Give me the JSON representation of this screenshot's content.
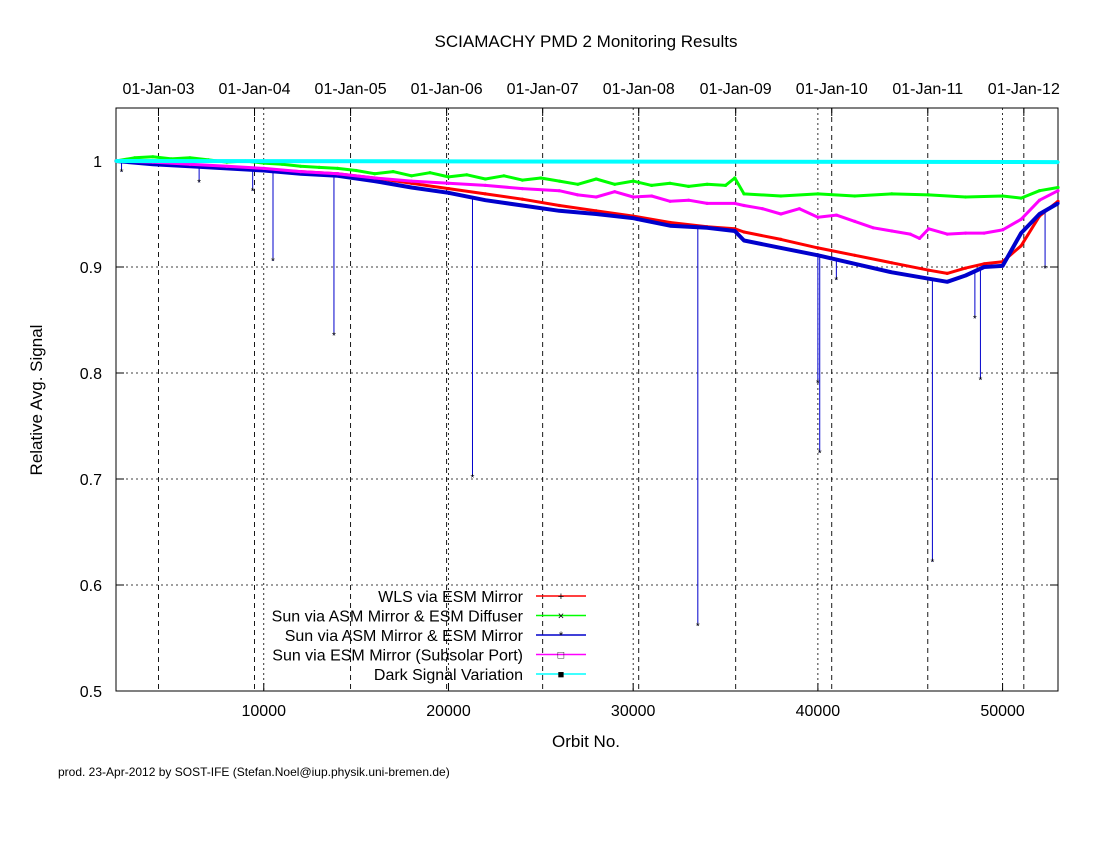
{
  "chart_data": {
    "type": "line",
    "title": "SCIAMACHY PMD 2 Monitoring Results",
    "xlabel": "Orbit No.",
    "ylabel": "Relative Avg. Signal",
    "footer": "prod. 23-Apr-2012 by SOST-IFE (Stefan.Noel@iup.physik.uni-bremen.de)",
    "xlim": [
      2000,
      53000
    ],
    "ylim": [
      0.5,
      1.05
    ],
    "x_ticks": [
      10000,
      20000,
      30000,
      40000,
      50000
    ],
    "x_tick_labels": [
      "10000",
      "20000",
      "30000",
      "40000",
      "50000"
    ],
    "y_ticks": [
      0.5,
      0.6,
      0.7,
      0.8,
      0.9,
      1.0
    ],
    "y_tick_labels": [
      "0.5",
      "0.6",
      "0.7",
      "0.8",
      "0.9",
      "1"
    ],
    "top_axis": {
      "ticks": [
        4300,
        9500,
        14700,
        19900,
        25100,
        30300,
        35550,
        40750,
        45950,
        51150
      ],
      "labels": [
        "01-Jan-03",
        "01-Jan-04",
        "01-Jan-05",
        "01-Jan-06",
        "01-Jan-07",
        "01-Jan-08",
        "01-Jan-09",
        "01-Jan-10",
        "01-Jan-11",
        "01-Jan-12"
      ]
    },
    "grid": true,
    "legend_position": "bottom-left",
    "series": [
      {
        "name": "WLS via ESM Mirror",
        "color": "#ff0000",
        "marker": "plus",
        "points": [
          [
            2000,
            1.0
          ],
          [
            4000,
            0.998
          ],
          [
            6000,
            0.996
          ],
          [
            8000,
            0.994
          ],
          [
            10000,
            0.992
          ],
          [
            12000,
            0.99
          ],
          [
            14000,
            0.988
          ],
          [
            16000,
            0.984
          ],
          [
            18000,
            0.979
          ],
          [
            20000,
            0.974
          ],
          [
            22000,
            0.969
          ],
          [
            24000,
            0.964
          ],
          [
            26000,
            0.958
          ],
          [
            28000,
            0.953
          ],
          [
            30000,
            0.948
          ],
          [
            32000,
            0.942
          ],
          [
            34000,
            0.938
          ],
          [
            35500,
            0.936
          ],
          [
            36000,
            0.933
          ],
          [
            38000,
            0.926
          ],
          [
            40000,
            0.918
          ],
          [
            42000,
            0.911
          ],
          [
            44000,
            0.904
          ],
          [
            46000,
            0.897
          ],
          [
            47000,
            0.894
          ],
          [
            48000,
            0.899
          ],
          [
            49000,
            0.903
          ],
          [
            50000,
            0.905
          ],
          [
            51000,
            0.92
          ],
          [
            52000,
            0.948
          ],
          [
            53000,
            0.962
          ]
        ],
        "spikes": []
      },
      {
        "name": "Sun via ASM Mirror & ESM Diffuser",
        "color": "#00ff00",
        "marker": "cross",
        "points": [
          [
            2000,
            1.0
          ],
          [
            3000,
            1.003
          ],
          [
            4000,
            1.004
          ],
          [
            5000,
            1.002
          ],
          [
            6000,
            1.003
          ],
          [
            7000,
            1.001
          ],
          [
            8000,
            0.999
          ],
          [
            9000,
            1.0
          ],
          [
            10000,
            0.998
          ],
          [
            11000,
            0.997
          ],
          [
            12000,
            0.995
          ],
          [
            13000,
            0.994
          ],
          [
            14000,
            0.993
          ],
          [
            15000,
            0.991
          ],
          [
            16000,
            0.988
          ],
          [
            17000,
            0.99
          ],
          [
            18000,
            0.986
          ],
          [
            19000,
            0.989
          ],
          [
            20000,
            0.985
          ],
          [
            21000,
            0.987
          ],
          [
            22000,
            0.983
          ],
          [
            23000,
            0.986
          ],
          [
            24000,
            0.982
          ],
          [
            25000,
            0.984
          ],
          [
            26000,
            0.981
          ],
          [
            27000,
            0.978
          ],
          [
            28000,
            0.983
          ],
          [
            29000,
            0.978
          ],
          [
            30000,
            0.981
          ],
          [
            31000,
            0.977
          ],
          [
            32000,
            0.979
          ],
          [
            33000,
            0.976
          ],
          [
            34000,
            0.978
          ],
          [
            35000,
            0.977
          ],
          [
            35500,
            0.984
          ],
          [
            36000,
            0.969
          ],
          [
            38000,
            0.967
          ],
          [
            40000,
            0.969
          ],
          [
            42000,
            0.967
          ],
          [
            44000,
            0.969
          ],
          [
            46000,
            0.968
          ],
          [
            48000,
            0.966
          ],
          [
            50000,
            0.967
          ],
          [
            51000,
            0.965
          ],
          [
            52000,
            0.972
          ],
          [
            53000,
            0.975
          ]
        ],
        "spikes": []
      },
      {
        "name": "Sun via ASM Mirror & ESM Mirror",
        "color": "#0000cc",
        "marker": "star",
        "points": [
          [
            2000,
            1.0
          ],
          [
            4000,
            0.997
          ],
          [
            6000,
            0.995
          ],
          [
            8000,
            0.993
          ],
          [
            10000,
            0.991
          ],
          [
            12000,
            0.988
          ],
          [
            14000,
            0.986
          ],
          [
            16000,
            0.981
          ],
          [
            18000,
            0.975
          ],
          [
            20000,
            0.97
          ],
          [
            22000,
            0.963
          ],
          [
            24000,
            0.958
          ],
          [
            26000,
            0.953
          ],
          [
            28000,
            0.95
          ],
          [
            30000,
            0.946
          ],
          [
            32000,
            0.939
          ],
          [
            34000,
            0.937
          ],
          [
            35500,
            0.934
          ],
          [
            36000,
            0.925
          ],
          [
            38000,
            0.918
          ],
          [
            40000,
            0.911
          ],
          [
            42000,
            0.903
          ],
          [
            44000,
            0.895
          ],
          [
            46000,
            0.889
          ],
          [
            47000,
            0.886
          ],
          [
            48000,
            0.892
          ],
          [
            49000,
            0.9
          ],
          [
            50000,
            0.901
          ],
          [
            51000,
            0.932
          ],
          [
            52000,
            0.95
          ],
          [
            53000,
            0.96
          ]
        ],
        "spikes": [
          [
            2300,
            0.99
          ],
          [
            6500,
            0.98
          ],
          [
            9400,
            0.972
          ],
          [
            10500,
            0.906
          ],
          [
            13800,
            0.836
          ],
          [
            21300,
            0.702
          ],
          [
            33500,
            0.562
          ],
          [
            40000,
            0.791
          ],
          [
            40100,
            0.725
          ],
          [
            41000,
            0.888
          ],
          [
            46200,
            0.622
          ],
          [
            48500,
            0.852
          ],
          [
            48800,
            0.794
          ],
          [
            52300,
            0.899
          ]
        ]
      },
      {
        "name": "Sun via ESM Mirror (Subsolar Port)",
        "color": "#ff00ff",
        "marker": "square",
        "points": [
          [
            2000,
            1.0
          ],
          [
            4000,
            0.999
          ],
          [
            6000,
            0.997
          ],
          [
            8000,
            0.995
          ],
          [
            10000,
            0.993
          ],
          [
            12000,
            0.99
          ],
          [
            14000,
            0.988
          ],
          [
            16000,
            0.984
          ],
          [
            18000,
            0.981
          ],
          [
            20000,
            0.979
          ],
          [
            22000,
            0.977
          ],
          [
            24000,
            0.974
          ],
          [
            26000,
            0.972
          ],
          [
            27000,
            0.968
          ],
          [
            28000,
            0.966
          ],
          [
            29000,
            0.971
          ],
          [
            30000,
            0.966
          ],
          [
            31000,
            0.967
          ],
          [
            32000,
            0.962
          ],
          [
            33000,
            0.963
          ],
          [
            34000,
            0.96
          ],
          [
            35500,
            0.96
          ],
          [
            36000,
            0.958
          ],
          [
            37000,
            0.955
          ],
          [
            38000,
            0.95
          ],
          [
            39000,
            0.955
          ],
          [
            40000,
            0.947
          ],
          [
            41000,
            0.949
          ],
          [
            42000,
            0.943
          ],
          [
            43000,
            0.937
          ],
          [
            44000,
            0.934
          ],
          [
            45000,
            0.931
          ],
          [
            45500,
            0.927
          ],
          [
            46000,
            0.936
          ],
          [
            47000,
            0.931
          ],
          [
            48000,
            0.932
          ],
          [
            49000,
            0.932
          ],
          [
            50000,
            0.935
          ],
          [
            51000,
            0.945
          ],
          [
            52000,
            0.963
          ],
          [
            53000,
            0.972
          ]
        ],
        "spikes": []
      },
      {
        "name": "Dark Signal Variation",
        "color": "#00ffff",
        "marker": "filled-square",
        "points": [
          [
            2000,
            1.0
          ],
          [
            53000,
            0.999
          ]
        ],
        "spikes": []
      }
    ]
  }
}
